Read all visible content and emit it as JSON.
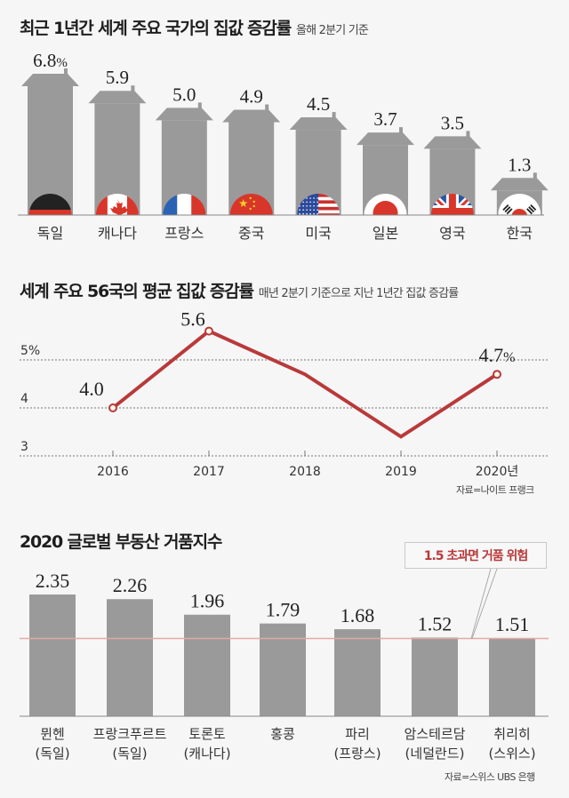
{
  "chart_data": [
    {
      "type": "bar",
      "title": "최근 1년간 세계 주요 국가의 집값 증감률",
      "subtitle": "올해 2분기 기준",
      "categories": [
        "독일",
        "캐나다",
        "프랑스",
        "중국",
        "미국",
        "일본",
        "영국",
        "한국"
      ],
      "values": [
        6.8,
        5.9,
        5.0,
        4.9,
        4.5,
        3.7,
        3.5,
        1.3
      ],
      "value_labels": [
        "6.8%",
        "5.9",
        "5.0",
        "4.9",
        "4.5",
        "3.7",
        "3.5",
        "1.3"
      ],
      "flags": [
        "germany-flag",
        "canada-flag",
        "france-flag",
        "china-flag",
        "usa-flag",
        "japan-flag",
        "uk-flag",
        "korea-flag"
      ],
      "unit": "%",
      "bar_shape": "house",
      "bar_color": "#9a9a9a",
      "xlabel": "",
      "ylabel": ""
    },
    {
      "type": "line",
      "title": "세계 주요 56국의 평균 집값 증감률",
      "subtitle": "매년 2분기 기준으로 지난 1년간 집값 증감률",
      "x": [
        "2016",
        "2017",
        "2018",
        "2019",
        "2020년"
      ],
      "series": [
        {
          "name": "평균 집값 증감률",
          "values": [
            4.0,
            5.6,
            4.7,
            3.4,
            4.7
          ],
          "color": "#b9393a"
        }
      ],
      "point_labels": {
        "0": "4.0",
        "1": "5.6",
        "4": "4.7%"
      },
      "marked_points": [
        0,
        1,
        4
      ],
      "ytick_labels": [
        "5%",
        "4",
        "3"
      ],
      "yticks": [
        5,
        4,
        3
      ],
      "ylim": [
        3,
        5.6
      ],
      "grid": true,
      "grid_style": "dashed",
      "source": "자료=나이트 프랭크"
    },
    {
      "type": "bar",
      "title": "2020 글로벌 부동산 거품지수",
      "categories": [
        "뮌헨",
        "프랑크푸르트",
        "토론토",
        "홍콩",
        "파리",
        "암스테르담",
        "취리히"
      ],
      "category_sublabels": [
        "(독일)",
        "(독일)",
        "(캐나다)",
        "",
        "(프랑스)",
        "(네덜란드)",
        "(스위스)"
      ],
      "values": [
        2.35,
        2.26,
        1.96,
        1.79,
        1.68,
        1.52,
        1.51
      ],
      "value_labels": [
        "2.35",
        "2.26",
        "1.96",
        "1.79",
        "1.68",
        "1.52",
        "1.51"
      ],
      "bar_color": "#9a9a9a",
      "reference_line": {
        "value": 1.5,
        "color": "#e3a9a4"
      },
      "annotation": "1.5 초과면 거품 위험",
      "ylim": [
        0,
        2.35
      ],
      "source": "자료=스위스 UBS 은행"
    }
  ]
}
